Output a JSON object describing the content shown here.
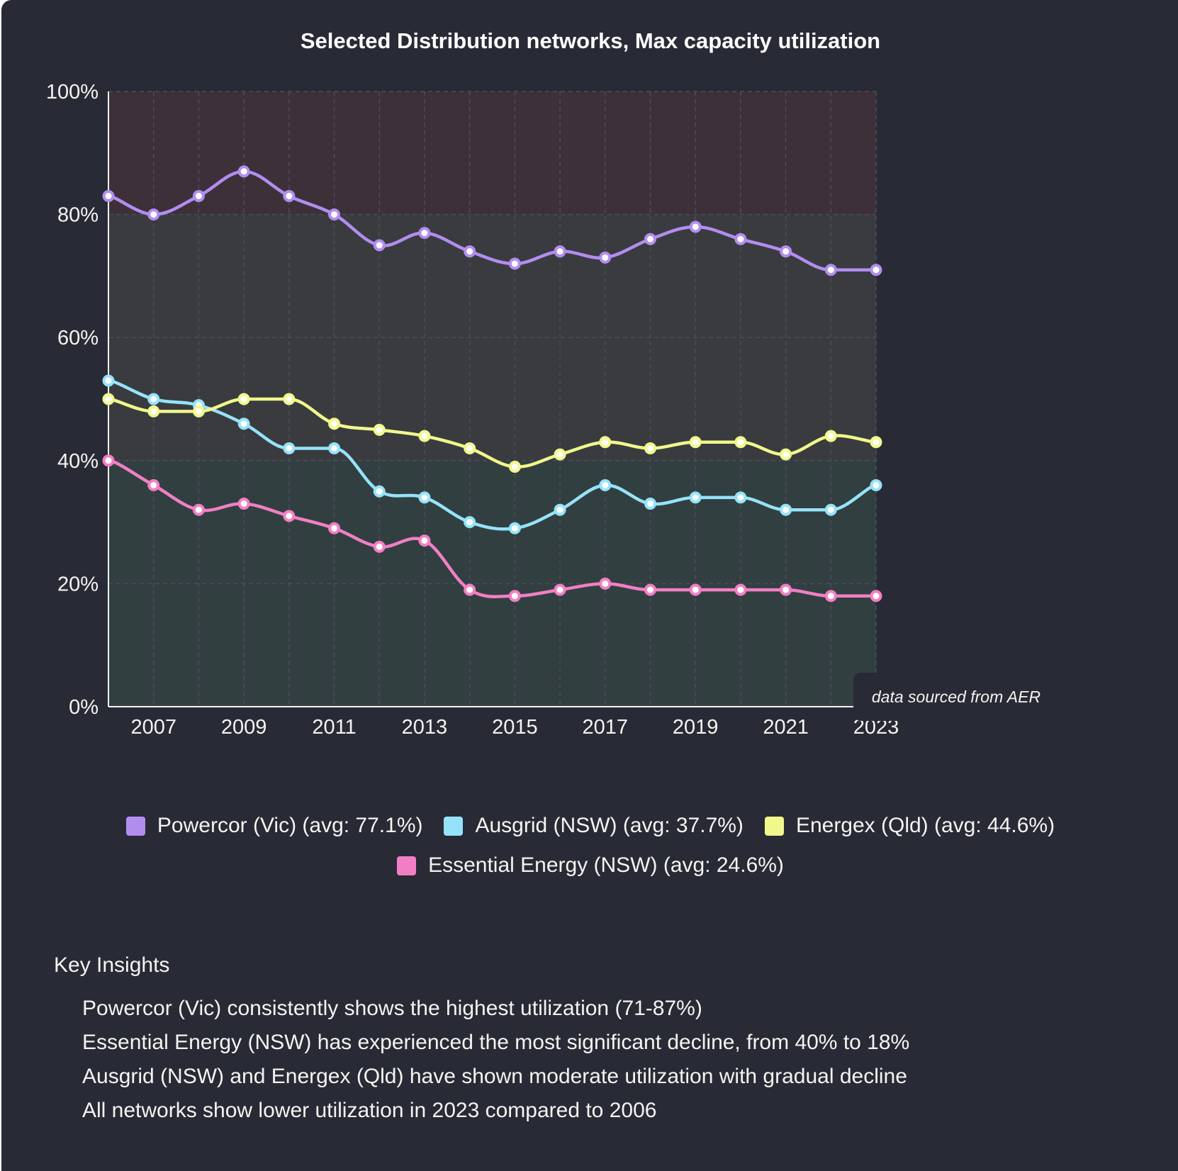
{
  "chart_data": {
    "type": "line",
    "title": "Selected Distribution networks, Max capacity utilization",
    "xlabel": "",
    "ylabel": "",
    "x": [
      2006,
      2007,
      2008,
      2009,
      2010,
      2011,
      2012,
      2013,
      2014,
      2015,
      2016,
      2017,
      2018,
      2019,
      2020,
      2021,
      2022,
      2023
    ],
    "x_tick_labels": [
      "2007",
      "2009",
      "2011",
      "2013",
      "2015",
      "2017",
      "2019",
      "2021",
      "2023"
    ],
    "y_tick_labels": [
      "0%",
      "20%",
      "40%",
      "60%",
      "80%",
      "100%"
    ],
    "ylim": [
      0,
      100
    ],
    "xlim": [
      2006,
      2023
    ],
    "grid": true,
    "legend_position": "bottom",
    "background_bands": [
      {
        "from": 80,
        "to": 100,
        "color": "#3d3039"
      },
      {
        "from": 40,
        "to": 80,
        "color": "#3a3b3f"
      },
      {
        "from": 0,
        "to": 40,
        "color": "#323f40"
      }
    ],
    "series": [
      {
        "name": "Powercor (Vic)",
        "legend_label": "Powercor (Vic) (avg: 77.1%)",
        "color": "#b28df0",
        "values": [
          83,
          80,
          83,
          87,
          83,
          80,
          75,
          77,
          74,
          72,
          74,
          73,
          76,
          78,
          76,
          74,
          71,
          71
        ]
      },
      {
        "name": "Ausgrid (NSW)",
        "legend_label": "Ausgrid (NSW) (avg: 37.7%)",
        "color": "#95e3f9",
        "values": [
          53,
          50,
          49,
          46,
          42,
          42,
          35,
          34,
          30,
          29,
          32,
          36,
          33,
          34,
          34,
          32,
          32,
          36
        ]
      },
      {
        "name": "Energex (Qld)",
        "legend_label": "Energex (Qld) (avg: 44.6%)",
        "color": "#f1f88b",
        "values": [
          50,
          48,
          48,
          50,
          50,
          46,
          45,
          44,
          42,
          39,
          41,
          43,
          42,
          43,
          43,
          41,
          44,
          43
        ]
      },
      {
        "name": "Essential Energy (NSW)",
        "legend_label": "Essential Energy (NSW) (avg: 24.6%)",
        "color": "#f27fc5",
        "values": [
          40,
          36,
          32,
          33,
          31,
          29,
          26,
          27,
          19,
          18,
          19,
          20,
          19,
          19,
          19,
          19,
          18,
          18
        ]
      }
    ],
    "annotation": "data sourced from AER"
  },
  "insights": {
    "heading": "Key Insights",
    "items": [
      "Powercor (Vic) consistently shows the highest utilization (71-87%)",
      "Essential Energy (NSW) has experienced the most significant decline, from 40% to 18%",
      "Ausgrid (NSW) and Energex (Qld) have shown moderate utilization with gradual decline",
      "All networks show lower utilization in 2023 compared to 2006"
    ]
  }
}
